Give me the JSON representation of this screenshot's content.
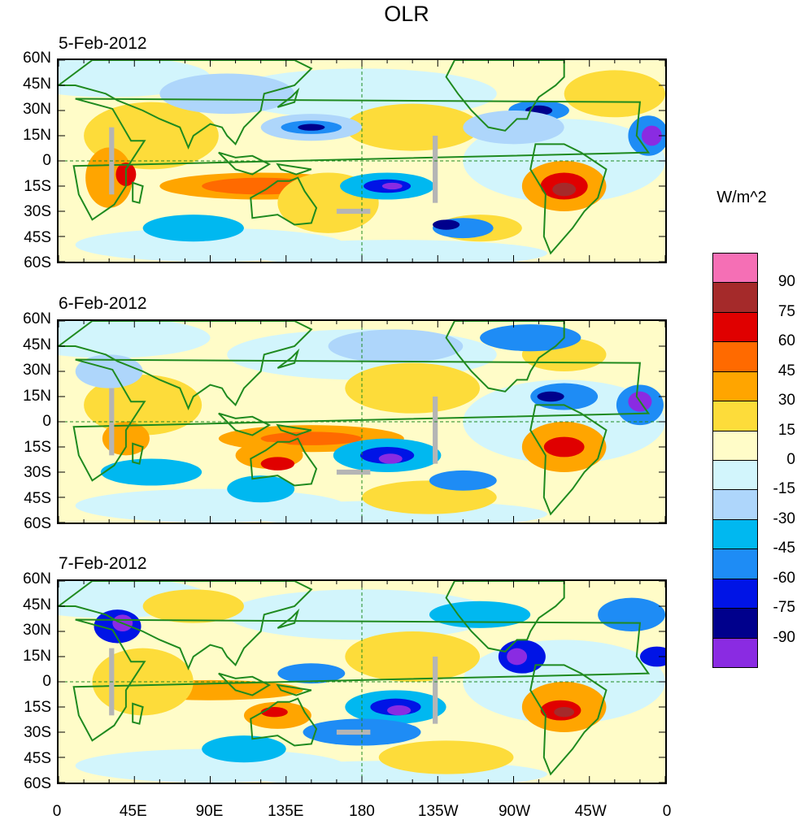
{
  "title": "OLR",
  "panels": [
    {
      "date": "5-Feb-2012"
    },
    {
      "date": "6-Feb-2012"
    },
    {
      "date": "7-Feb-2012"
    }
  ],
  "lat_labels": [
    "60N",
    "45N",
    "30N",
    "15N",
    "0",
    "15S",
    "30S",
    "45S",
    "60S"
  ],
  "lon_labels": [
    "0",
    "45E",
    "90E",
    "135E",
    "180",
    "135W",
    "90W",
    "45W",
    "0"
  ],
  "colorbar": {
    "units": "W/m^2",
    "labels": [
      "90",
      "75",
      "60",
      "45",
      "30",
      "15",
      "0",
      "-15",
      "-30",
      "-45",
      "-60",
      "-75",
      "-90"
    ],
    "colors": [
      "#f56fb5",
      "#a52a2a",
      "#e00000",
      "#ff6a00",
      "#ffa500",
      "#fddc3a",
      "#fffcc8",
      "#d2f5fc",
      "#aed6fb",
      "#00b8f0",
      "#1e8cf5",
      "#0014e6",
      "#00008c",
      "#8a2be2"
    ]
  }
}
